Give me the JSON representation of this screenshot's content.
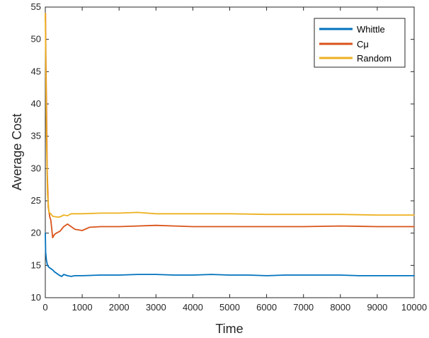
{
  "chart_data": {
    "type": "line",
    "title": "",
    "xlabel": "Time",
    "ylabel": "Average Cost",
    "xlim": [
      0,
      10000
    ],
    "ylim": [
      10,
      55
    ],
    "xticks": [
      0,
      1000,
      2000,
      3000,
      4000,
      5000,
      6000,
      7000,
      8000,
      9000,
      10000
    ],
    "yticks": [
      10,
      15,
      20,
      25,
      30,
      35,
      40,
      45,
      50,
      55
    ],
    "grid": false,
    "legend_position": "top-right",
    "series": [
      {
        "name": "Whittle",
        "color": "#0072BD",
        "x": [
          0,
          10,
          30,
          60,
          100,
          150,
          200,
          250,
          300,
          350,
          400,
          450,
          500,
          550,
          600,
          700,
          800,
          1000,
          1500,
          2000,
          2500,
          3000,
          3500,
          4000,
          4500,
          5000,
          5500,
          6000,
          6500,
          7000,
          7500,
          8000,
          8500,
          9000,
          9500,
          10000
        ],
        "y": [
          20.0,
          17.0,
          15.8,
          15.0,
          14.7,
          14.5,
          14.3,
          14.0,
          13.8,
          13.6,
          13.4,
          13.3,
          13.6,
          13.5,
          13.4,
          13.3,
          13.4,
          13.4,
          13.5,
          13.5,
          13.6,
          13.6,
          13.5,
          13.5,
          13.6,
          13.5,
          13.5,
          13.4,
          13.5,
          13.5,
          13.5,
          13.5,
          13.4,
          13.4,
          13.4,
          13.4
        ]
      },
      {
        "name": "Cμ",
        "color": "#D95319",
        "x": [
          0,
          5,
          10,
          30,
          50,
          80,
          120,
          150,
          200,
          250,
          300,
          400,
          500,
          600,
          700,
          800,
          900,
          1000,
          1200,
          1500,
          2000,
          2500,
          3000,
          3500,
          4000,
          5000,
          6000,
          7000,
          8000,
          9000,
          10000
        ],
        "y": [
          53.0,
          54.0,
          50.0,
          40.0,
          30.0,
          24.0,
          22.5,
          22.0,
          19.3,
          19.8,
          20.0,
          20.3,
          21.0,
          21.4,
          21.0,
          20.6,
          20.5,
          20.4,
          20.9,
          21.0,
          21.0,
          21.1,
          21.2,
          21.1,
          21.0,
          21.0,
          21.0,
          21.0,
          21.1,
          21.0,
          21.0
        ]
      },
      {
        "name": "Random",
        "color": "#EDB120",
        "x": [
          0,
          10,
          30,
          60,
          100,
          150,
          200,
          300,
          400,
          500,
          600,
          700,
          800,
          1000,
          1500,
          2000,
          2500,
          3000,
          3500,
          4000,
          4500,
          5000,
          6000,
          7000,
          8000,
          9000,
          10000
        ],
        "y": [
          54.0,
          48.0,
          35.0,
          26.0,
          23.2,
          23.0,
          22.6,
          22.5,
          22.5,
          22.8,
          22.7,
          23.0,
          23.0,
          23.0,
          23.1,
          23.1,
          23.2,
          23.0,
          23.0,
          23.0,
          23.0,
          23.0,
          22.9,
          22.9,
          22.9,
          22.8,
          22.8
        ]
      }
    ]
  }
}
